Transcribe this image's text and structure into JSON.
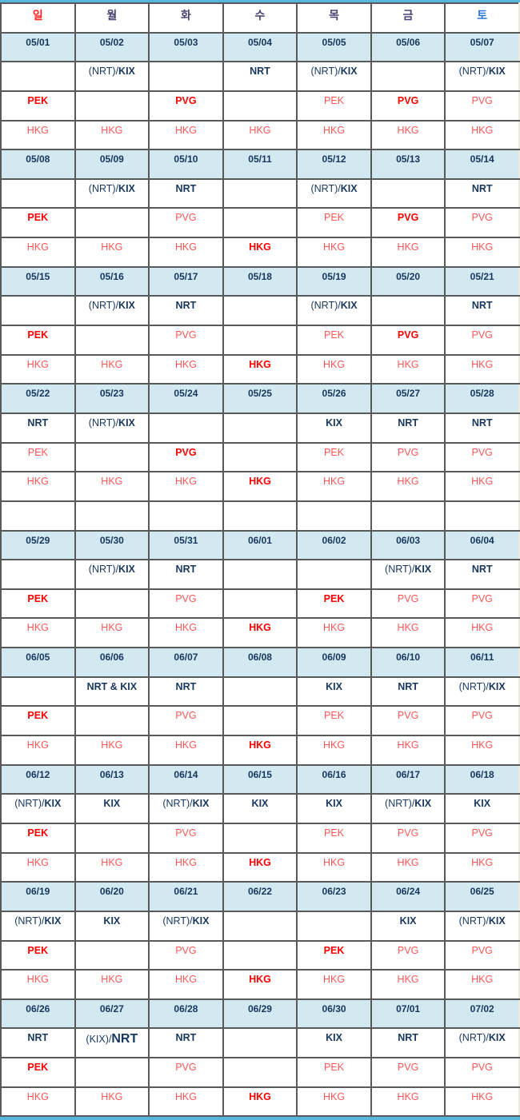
{
  "calendar": {
    "colors": {
      "outer_border": "#58b7d8",
      "grid_border": "#595959",
      "date_row_bg": "#d2e9f2",
      "date_text": "#17365d",
      "route_navy": "#17375e",
      "red_bold": "#ff0000",
      "red_light": "#ff5757",
      "saturday_blue": "#2e75d6",
      "sunday_red": "#ff2222",
      "weekday_navy": "#4a4273"
    },
    "day_headers": [
      {
        "key": "sun",
        "label": "일",
        "color": "#ff2222"
      },
      {
        "key": "mon",
        "label": "월",
        "color": "#4a4273"
      },
      {
        "key": "tue",
        "label": "화",
        "color": "#4a4273"
      },
      {
        "key": "wed",
        "label": "수",
        "color": "#4a4273"
      },
      {
        "key": "thu",
        "label": "목",
        "color": "#4a4273"
      },
      {
        "key": "fri",
        "label": "금",
        "color": "#4a4273"
      },
      {
        "key": "sat",
        "label": "토",
        "color": "#2e75d6"
      }
    ],
    "empty_row_after_week_index": 3,
    "weeks": [
      {
        "dates": [
          "05/01",
          "05/02",
          "05/03",
          "05/04",
          "05/05",
          "05/06",
          "05/07"
        ],
        "japan": [
          null,
          {
            "plain": "(NRT)/",
            "bold": "KIX"
          },
          null,
          {
            "bold": "NRT"
          },
          {
            "plain": "(NRT)/",
            "bold": "KIX"
          },
          null,
          {
            "plain": "(NRT)/",
            "bold": "KIX"
          }
        ],
        "china": [
          {
            "text": "PEK",
            "bold": true
          },
          null,
          {
            "text": "PVG",
            "bold": true
          },
          null,
          {
            "text": "PEK",
            "bold": false
          },
          {
            "text": "PVG",
            "bold": true
          },
          {
            "text": "PVG",
            "bold": false
          }
        ],
        "hongkong": [
          {
            "text": "HKG",
            "bold": false
          },
          {
            "text": "HKG",
            "bold": false
          },
          {
            "text": "HKG",
            "bold": false
          },
          {
            "text": "HKG",
            "bold": false
          },
          {
            "text": "HKG",
            "bold": false
          },
          {
            "text": "HKG",
            "bold": false
          },
          {
            "text": "HKG",
            "bold": false
          }
        ]
      },
      {
        "dates": [
          "05/08",
          "05/09",
          "05/10",
          "05/11",
          "05/12",
          "05/13",
          "05/14"
        ],
        "japan": [
          null,
          {
            "plain": "(NRT)/",
            "bold": "KIX"
          },
          {
            "bold": "NRT"
          },
          null,
          {
            "plain": "(NRT)/",
            "bold": "KIX"
          },
          null,
          {
            "bold": "NRT"
          }
        ],
        "china": [
          {
            "text": "PEK",
            "bold": true
          },
          null,
          {
            "text": "PVG",
            "bold": false
          },
          null,
          {
            "text": "PEK",
            "bold": false
          },
          {
            "text": "PVG",
            "bold": true
          },
          {
            "text": "PVG",
            "bold": false
          }
        ],
        "hongkong": [
          {
            "text": "HKG",
            "bold": false
          },
          {
            "text": "HKG",
            "bold": false
          },
          {
            "text": "HKG",
            "bold": false
          },
          {
            "text": "HKG",
            "bold": true
          },
          {
            "text": "HKG",
            "bold": false
          },
          {
            "text": "HKG",
            "bold": false
          },
          {
            "text": "HKG",
            "bold": false
          }
        ]
      },
      {
        "dates": [
          "05/15",
          "05/16",
          "05/17",
          "05/18",
          "05/19",
          "05/20",
          "05/21"
        ],
        "japan": [
          null,
          {
            "plain": "(NRT)/",
            "bold": "KIX"
          },
          {
            "bold": "NRT"
          },
          null,
          {
            "plain": "(NRT)/",
            "bold": "KIX"
          },
          null,
          {
            "bold": "NRT"
          }
        ],
        "china": [
          {
            "text": "PEK",
            "bold": true
          },
          null,
          {
            "text": "PVG",
            "bold": false
          },
          null,
          {
            "text": "PEK",
            "bold": false
          },
          {
            "text": "PVG",
            "bold": true
          },
          {
            "text": "PVG",
            "bold": false
          }
        ],
        "hongkong": [
          {
            "text": "HKG",
            "bold": false
          },
          {
            "text": "HKG",
            "bold": false
          },
          {
            "text": "HKG",
            "bold": false
          },
          {
            "text": "HKG",
            "bold": true
          },
          {
            "text": "HKG",
            "bold": false
          },
          {
            "text": "HKG",
            "bold": false
          },
          {
            "text": "HKG",
            "bold": false
          }
        ]
      },
      {
        "dates": [
          "05/22",
          "05/23",
          "05/24",
          "05/25",
          "05/26",
          "05/27",
          "05/28"
        ],
        "japan": [
          {
            "bold": "NRT"
          },
          {
            "plain": "(NRT)/",
            "bold": "KIX"
          },
          null,
          null,
          {
            "bold": "KIX"
          },
          {
            "bold": "NRT"
          },
          {
            "bold": "NRT"
          }
        ],
        "china": [
          {
            "text": "PEK",
            "bold": false
          },
          null,
          {
            "text": "PVG",
            "bold": true
          },
          null,
          {
            "text": "PEK",
            "bold": false
          },
          {
            "text": "PVG",
            "bold": false
          },
          {
            "text": "PVG",
            "bold": false
          }
        ],
        "hongkong": [
          {
            "text": "HKG",
            "bold": false
          },
          {
            "text": "HKG",
            "bold": false
          },
          {
            "text": "HKG",
            "bold": false
          },
          {
            "text": "HKG",
            "bold": true
          },
          {
            "text": "HKG",
            "bold": false
          },
          {
            "text": "HKG",
            "bold": false
          },
          {
            "text": "HKG",
            "bold": false
          }
        ]
      },
      {
        "dates": [
          "05/29",
          "05/30",
          "05/31",
          "06/01",
          "06/02",
          "06/03",
          "06/04"
        ],
        "japan": [
          null,
          {
            "plain": "(NRT)/",
            "bold": "KIX"
          },
          {
            "bold": "NRT"
          },
          null,
          null,
          {
            "plain": "(NRT)/",
            "bold": "KIX"
          },
          {
            "bold": "NRT"
          }
        ],
        "china": [
          {
            "text": "PEK",
            "bold": true
          },
          null,
          {
            "text": "PVG",
            "bold": false
          },
          null,
          {
            "text": "PEK",
            "bold": true
          },
          {
            "text": "PVG",
            "bold": false
          },
          {
            "text": "PVG",
            "bold": false
          }
        ],
        "hongkong": [
          {
            "text": "HKG",
            "bold": false
          },
          {
            "text": "HKG",
            "bold": false
          },
          {
            "text": "HKG",
            "bold": false
          },
          {
            "text": "HKG",
            "bold": true
          },
          {
            "text": "HKG",
            "bold": false
          },
          {
            "text": "HKG",
            "bold": false
          },
          {
            "text": "HKG",
            "bold": false
          }
        ]
      },
      {
        "dates": [
          "06/05",
          "06/06",
          "06/07",
          "06/08",
          "06/09",
          "06/10",
          "06/11"
        ],
        "japan": [
          null,
          {
            "bold": "NRT & KIX"
          },
          {
            "bold": "NRT"
          },
          null,
          {
            "bold": "KIX"
          },
          {
            "bold": "NRT"
          },
          {
            "plain": "(NRT)/",
            "bold": "KIX"
          }
        ],
        "china": [
          {
            "text": "PEK",
            "bold": true
          },
          null,
          {
            "text": "PVG",
            "bold": false
          },
          null,
          {
            "text": "PEK",
            "bold": false
          },
          {
            "text": "PVG",
            "bold": false
          },
          {
            "text": "PVG",
            "bold": false
          }
        ],
        "hongkong": [
          {
            "text": "HKG",
            "bold": false
          },
          {
            "text": "HKG",
            "bold": false
          },
          {
            "text": "HKG",
            "bold": false
          },
          {
            "text": "HKG",
            "bold": true
          },
          {
            "text": "HKG",
            "bold": false
          },
          {
            "text": "HKG",
            "bold": false
          },
          {
            "text": "HKG",
            "bold": false
          }
        ]
      },
      {
        "dates": [
          "06/12",
          "06/13",
          "06/14",
          "06/15",
          "06/16",
          "06/17",
          "06/18"
        ],
        "japan": [
          {
            "plain": "(NRT)/",
            "bold": "KIX"
          },
          {
            "bold": "KIX"
          },
          {
            "plain": "(NRT)/",
            "bold": "KIX"
          },
          {
            "bold": "KIX"
          },
          {
            "bold": "KIX"
          },
          {
            "plain": "(NRT)/",
            "bold": "KIX"
          },
          {
            "bold": "KIX"
          }
        ],
        "china": [
          {
            "text": "PEK",
            "bold": true
          },
          null,
          {
            "text": "PVG",
            "bold": false
          },
          null,
          {
            "text": "PEK",
            "bold": false
          },
          {
            "text": "PVG",
            "bold": false
          },
          {
            "text": "PVG",
            "bold": false
          }
        ],
        "hongkong": [
          {
            "text": "HKG",
            "bold": false
          },
          {
            "text": "HKG",
            "bold": false
          },
          {
            "text": "HKG",
            "bold": false
          },
          {
            "text": "HKG",
            "bold": true
          },
          {
            "text": "HKG",
            "bold": false
          },
          {
            "text": "HKG",
            "bold": false
          },
          {
            "text": "HKG",
            "bold": false
          }
        ]
      },
      {
        "dates": [
          "06/19",
          "06/20",
          "06/21",
          "06/22",
          "06/23",
          "06/24",
          "06/25"
        ],
        "japan": [
          {
            "plain": "(NRT)/",
            "bold": "KIX"
          },
          {
            "bold": "KIX"
          },
          {
            "plain": "(NRT)/",
            "bold": "KIX"
          },
          null,
          null,
          {
            "bold": "KIX"
          },
          {
            "plain": "(NRT)/",
            "bold": "KIX"
          }
        ],
        "china": [
          {
            "text": "PEK",
            "bold": true
          },
          null,
          {
            "text": "PVG",
            "bold": false
          },
          null,
          {
            "text": "PEK",
            "bold": true
          },
          {
            "text": "PVG",
            "bold": false
          },
          {
            "text": "PVG",
            "bold": false
          }
        ],
        "hongkong": [
          {
            "text": "HKG",
            "bold": false
          },
          {
            "text": "HKG",
            "bold": false
          },
          {
            "text": "HKG",
            "bold": false
          },
          {
            "text": "HKG",
            "bold": true
          },
          {
            "text": "HKG",
            "bold": false
          },
          {
            "text": "HKG",
            "bold": false
          },
          {
            "text": "HKG",
            "bold": false
          }
        ]
      },
      {
        "dates": [
          "06/26",
          "06/27",
          "06/28",
          "06/29",
          "06/30",
          "07/01",
          "07/02"
        ],
        "japan": [
          {
            "bold": "NRT"
          },
          {
            "plain": "(KIX)/",
            "bold": "NRT",
            "big": true
          },
          {
            "bold": "NRT"
          },
          null,
          {
            "bold": "KIX"
          },
          {
            "bold": "NRT"
          },
          {
            "plain": "(NRT)/",
            "bold": "KIX"
          }
        ],
        "china": [
          {
            "text": "PEK",
            "bold": true
          },
          null,
          {
            "text": "PVG",
            "bold": false
          },
          null,
          {
            "text": "PEK",
            "bold": false
          },
          {
            "text": "PVG",
            "bold": false
          },
          {
            "text": "PVG",
            "bold": false
          }
        ],
        "hongkong": [
          {
            "text": "HKG",
            "bold": false
          },
          {
            "text": "HKG",
            "bold": false
          },
          {
            "text": "HKG",
            "bold": false
          },
          {
            "text": "HKG",
            "bold": true
          },
          {
            "text": "HKG",
            "bold": false
          },
          {
            "text": "HKG",
            "bold": false
          },
          {
            "text": "HKG",
            "bold": false
          }
        ]
      }
    ]
  }
}
